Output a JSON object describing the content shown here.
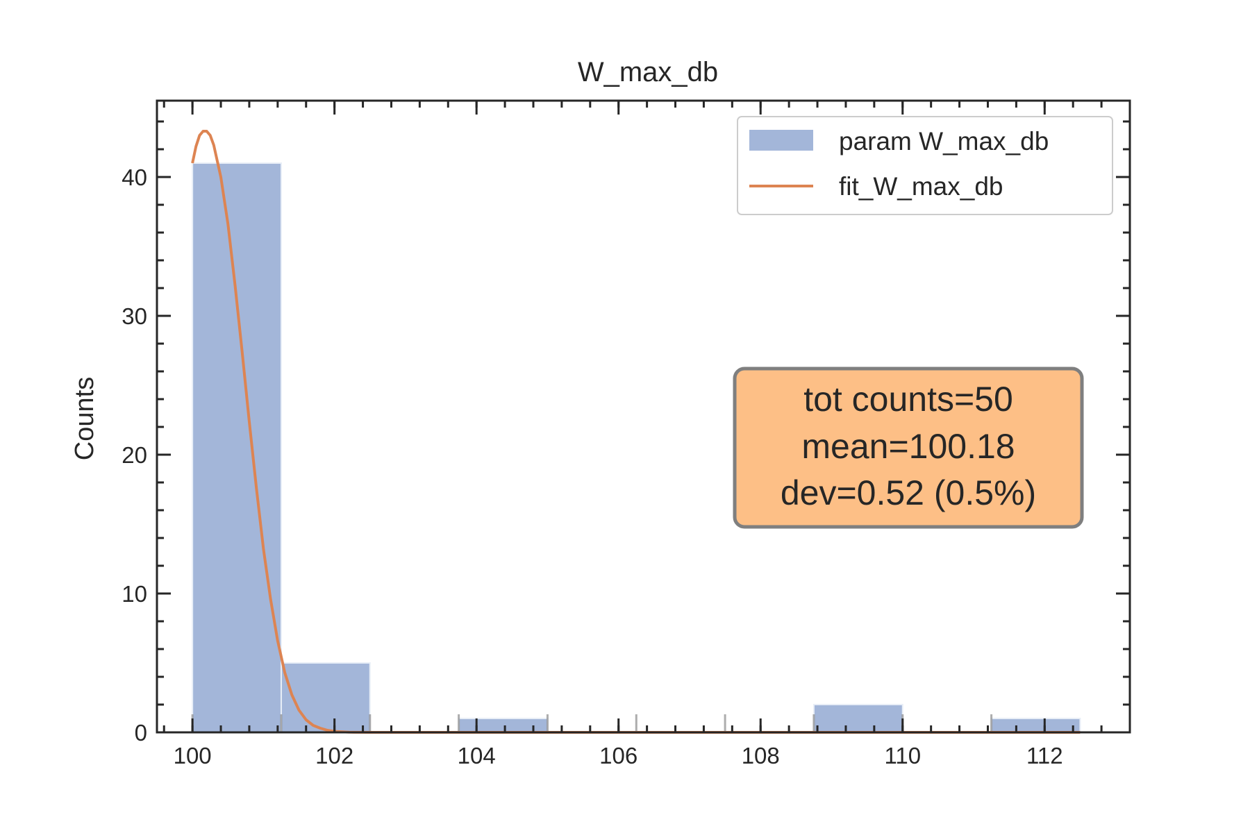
{
  "chart_data": {
    "type": "bar",
    "title": "W_max_db",
    "xlabel": "",
    "ylabel": "Counts",
    "xlim": [
      99.5,
      113.2
    ],
    "ylim": [
      0,
      45.5
    ],
    "x_ticks": [
      "100",
      "102",
      "104",
      "106",
      "108",
      "110",
      "112"
    ],
    "y_ticks": [
      "0",
      "10",
      "20",
      "30",
      "40"
    ],
    "grid": false,
    "legend_position": "upper right",
    "series": [
      {
        "name": "param W_max_db",
        "kind": "histogram",
        "color": "#a3b6d9",
        "bins": [
          {
            "x0": 100.0,
            "x1": 101.25,
            "count": 41
          },
          {
            "x0": 101.25,
            "x1": 102.5,
            "count": 5
          },
          {
            "x0": 102.5,
            "x1": 103.75,
            "count": 0
          },
          {
            "x0": 103.75,
            "x1": 105.0,
            "count": 1
          },
          {
            "x0": 105.0,
            "x1": 106.25,
            "count": 0
          },
          {
            "x0": 106.25,
            "x1": 107.5,
            "count": 0
          },
          {
            "x0": 107.5,
            "x1": 108.75,
            "count": 0
          },
          {
            "x0": 108.75,
            "x1": 110.0,
            "count": 2
          },
          {
            "x0": 110.0,
            "x1": 111.25,
            "count": 0
          },
          {
            "x0": 111.25,
            "x1": 112.5,
            "count": 1
          }
        ]
      },
      {
        "name": "fit_W_max_db",
        "kind": "line",
        "color": "#dd8452",
        "x": [
          100.0,
          100.05,
          100.1,
          100.15,
          100.2,
          100.25,
          100.3,
          100.4,
          100.5,
          100.6,
          100.7,
          100.8,
          100.9,
          101.0,
          101.1,
          101.2,
          101.3,
          101.4,
          101.5,
          101.6,
          101.7,
          101.8,
          101.9,
          102.0,
          102.2,
          102.5,
          103.0,
          104.0,
          106.0,
          108.0,
          110.0,
          112.0,
          112.5
        ],
        "y": [
          41.0,
          42.2,
          43.0,
          43.3,
          43.3,
          43.0,
          42.3,
          40.0,
          36.6,
          32.2,
          27.4,
          22.4,
          17.6,
          13.2,
          9.6,
          6.6,
          4.3,
          2.7,
          1.6,
          0.9,
          0.5,
          0.3,
          0.15,
          0.07,
          0.01,
          0,
          0,
          0,
          0,
          0,
          0,
          0,
          0
        ]
      }
    ],
    "stats_box": {
      "lines": [
        "tot counts=50",
        "mean=100.18",
        "dev=0.52 (0.5%)"
      ],
      "fill": "#fdbf86",
      "edge": "#7f7f7f"
    }
  }
}
